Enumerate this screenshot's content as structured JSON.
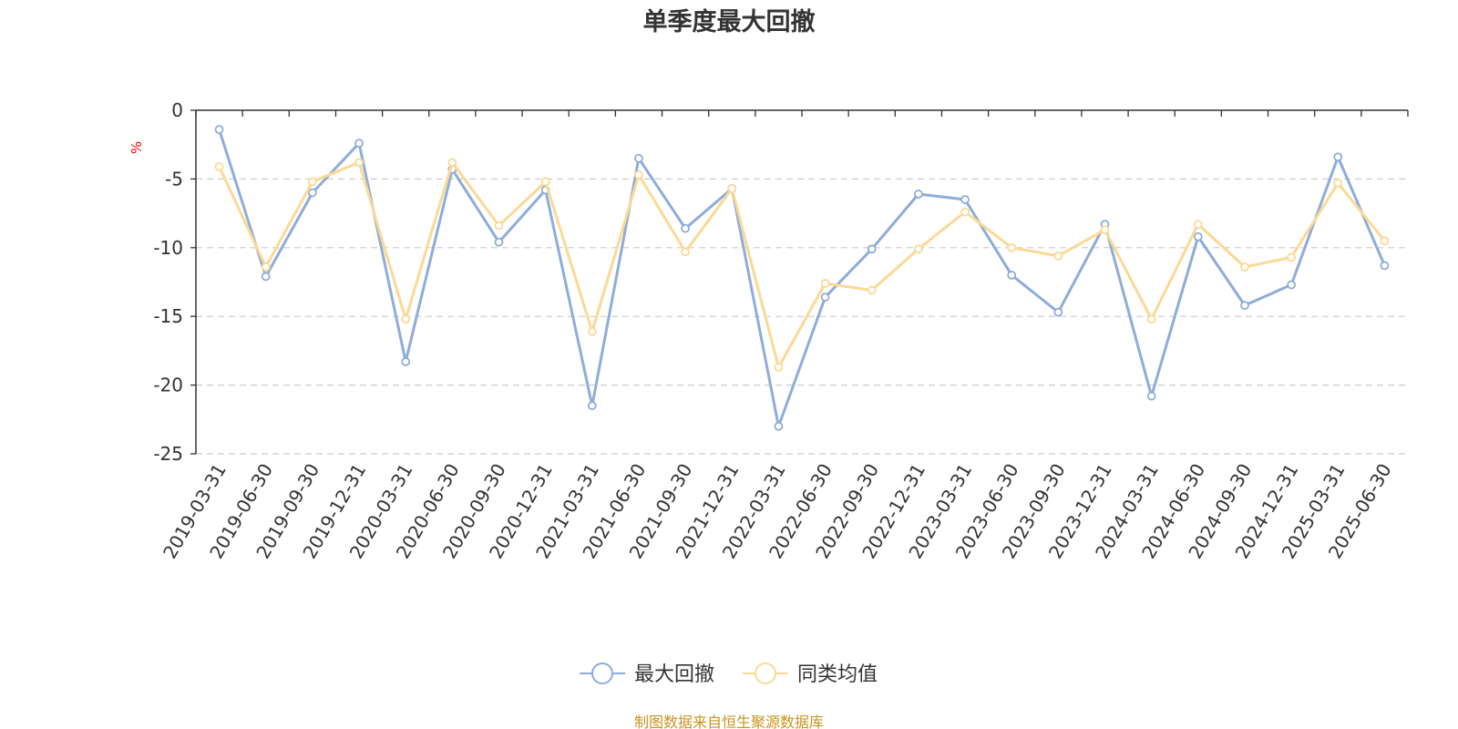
{
  "chart_data": {
    "type": "line",
    "title": "单季度最大回撤",
    "ylabel": "%",
    "xlabel": "",
    "ylim": [
      -25,
      0
    ],
    "yticks": [
      0,
      -5,
      -10,
      -15,
      -20,
      -25
    ],
    "grid": true,
    "legend_position": "bottom",
    "categories": [
      "2019-03-31",
      "2019-06-30",
      "2019-09-30",
      "2019-12-31",
      "2020-03-31",
      "2020-06-30",
      "2020-09-30",
      "2020-12-31",
      "2021-03-31",
      "2021-06-30",
      "2021-09-30",
      "2021-12-31",
      "2022-03-31",
      "2022-06-30",
      "2022-09-30",
      "2022-12-31",
      "2023-03-31",
      "2023-06-30",
      "2023-09-30",
      "2023-12-31",
      "2024-03-31",
      "2024-06-30",
      "2024-09-30",
      "2024-12-31",
      "2025-03-31",
      "2025-06-30"
    ],
    "series": [
      {
        "name": "最大回撤",
        "color": "#8eadd9",
        "values": [
          -1.4,
          -12.1,
          -6.0,
          -2.4,
          -18.3,
          -4.3,
          -9.6,
          -5.8,
          -21.5,
          -3.5,
          -8.6,
          -5.7,
          -23.0,
          -13.6,
          -10.1,
          -6.1,
          -6.5,
          -12.0,
          -14.7,
          -8.3,
          -20.8,
          -9.2,
          -14.2,
          -12.7,
          -3.4,
          -11.3
        ]
      },
      {
        "name": "同类均值",
        "color": "#fcd995",
        "values": [
          -4.1,
          -11.4,
          -5.2,
          -3.8,
          -15.2,
          -3.8,
          -8.4,
          -5.2,
          -16.1,
          -4.7,
          -10.3,
          -5.7,
          -18.7,
          -12.6,
          -13.1,
          -10.1,
          -7.4,
          -10.0,
          -10.6,
          -8.7,
          -15.2,
          -8.3,
          -11.4,
          -10.7,
          -5.3,
          -9.5
        ]
      }
    ],
    "axis_color": "#333333",
    "grid_color": "#cccccc",
    "unit_color": "#ff0000"
  },
  "source_note": "制图数据来自恒生聚源数据库",
  "source_color": "#c8951e"
}
